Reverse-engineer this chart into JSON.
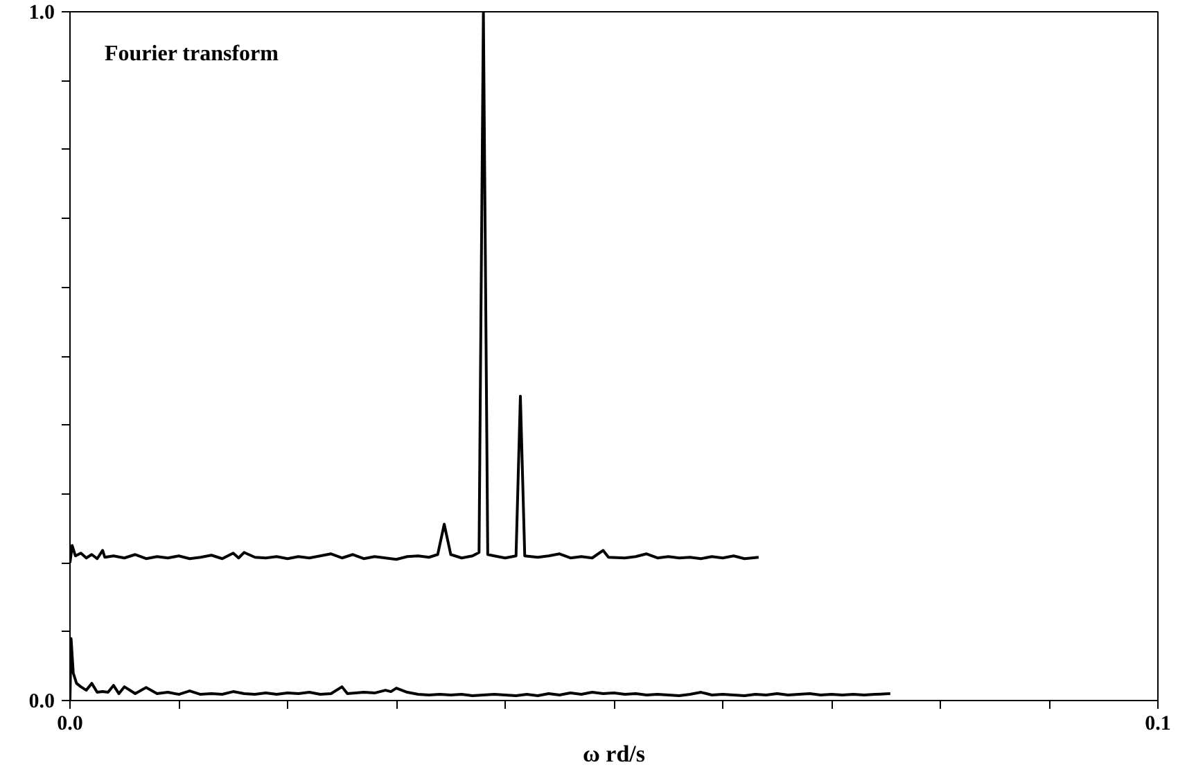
{
  "chart_data": {
    "type": "line",
    "xlabel": "ω rd/s",
    "annotations": [
      "Fourier transform"
    ],
    "xlim": [
      0,
      0.1
    ],
    "ylim": [
      0,
      1.0
    ],
    "xticks": [
      {
        "value": 0,
        "label": "0.0"
      },
      {
        "value": 0.01,
        "label": null
      },
      {
        "value": 0.02,
        "label": null
      },
      {
        "value": 0.03,
        "label": null
      },
      {
        "value": 0.04,
        "label": null
      },
      {
        "value": 0.05,
        "label": null
      },
      {
        "value": 0.06,
        "label": null
      },
      {
        "value": 0.07,
        "label": null
      },
      {
        "value": 0.08,
        "label": null
      },
      {
        "value": 0.09,
        "label": null
      },
      {
        "value": 0.1,
        "label": "0.1"
      }
    ],
    "yticks": [
      {
        "value": 0,
        "label": "0.0"
      },
      {
        "value": 0.1,
        "label": null
      },
      {
        "value": 0.2,
        "label": null
      },
      {
        "value": 0.3,
        "label": null
      },
      {
        "value": 0.4,
        "label": null
      },
      {
        "value": 0.5,
        "label": null
      },
      {
        "value": 0.6,
        "label": null
      },
      {
        "value": 0.7,
        "label": null
      },
      {
        "value": 0.8,
        "label": null
      },
      {
        "value": 0.9,
        "label": null
      },
      {
        "value": 1.0,
        "label": "1.0"
      }
    ],
    "grid": false,
    "series": [
      {
        "color": "#000000",
        "x": [
          0.0,
          0.0002,
          0.0005,
          0.001,
          0.0015,
          0.002,
          0.0025,
          0.003,
          0.0032,
          0.004,
          0.005,
          0.006,
          0.007,
          0.008,
          0.009,
          0.01,
          0.011,
          0.012,
          0.013,
          0.014,
          0.015,
          0.0155,
          0.016,
          0.017,
          0.018,
          0.019,
          0.02,
          0.021,
          0.022,
          0.023,
          0.024,
          0.025,
          0.026,
          0.027,
          0.028,
          0.029,
          0.03,
          0.031,
          0.032,
          0.033,
          0.0338,
          0.0344,
          0.035,
          0.036,
          0.037,
          0.0376,
          0.038,
          0.0384,
          0.039,
          0.04,
          0.041,
          0.0414,
          0.0418,
          0.043,
          0.044,
          0.045,
          0.046,
          0.047,
          0.048,
          0.049,
          0.0495,
          0.051,
          0.052,
          0.053,
          0.054,
          0.055,
          0.056,
          0.057,
          0.058,
          0.059,
          0.06,
          0.061,
          0.062,
          0.0633
        ],
        "values": [
          0.2,
          0.225,
          0.21,
          0.214,
          0.207,
          0.212,
          0.206,
          0.218,
          0.208,
          0.21,
          0.207,
          0.212,
          0.206,
          0.209,
          0.207,
          0.21,
          0.206,
          0.208,
          0.211,
          0.206,
          0.214,
          0.207,
          0.215,
          0.208,
          0.207,
          0.209,
          0.206,
          0.209,
          0.207,
          0.21,
          0.213,
          0.207,
          0.212,
          0.206,
          0.209,
          0.207,
          0.205,
          0.209,
          0.21,
          0.208,
          0.212,
          0.256,
          0.212,
          0.207,
          0.21,
          0.215,
          1.0,
          0.212,
          0.21,
          0.207,
          0.21,
          0.442,
          0.21,
          0.208,
          0.21,
          0.213,
          0.207,
          0.209,
          0.207,
          0.218,
          0.208,
          0.207,
          0.209,
          0.213,
          0.207,
          0.209,
          0.207,
          0.208,
          0.206,
          0.209,
          0.207,
          0.21,
          0.206,
          0.208
        ]
      },
      {
        "color": "#000000",
        "x": [
          0.0,
          0.0001,
          0.0003,
          0.0006,
          0.001,
          0.0015,
          0.002,
          0.0025,
          0.003,
          0.0035,
          0.004,
          0.0045,
          0.005,
          0.006,
          0.007,
          0.008,
          0.009,
          0.01,
          0.011,
          0.012,
          0.013,
          0.014,
          0.015,
          0.016,
          0.017,
          0.018,
          0.019,
          0.02,
          0.021,
          0.022,
          0.023,
          0.024,
          0.025,
          0.0255,
          0.027,
          0.028,
          0.029,
          0.0295,
          0.03,
          0.031,
          0.032,
          0.033,
          0.034,
          0.035,
          0.036,
          0.037,
          0.038,
          0.039,
          0.04,
          0.041,
          0.042,
          0.043,
          0.044,
          0.045,
          0.046,
          0.047,
          0.048,
          0.049,
          0.05,
          0.051,
          0.052,
          0.053,
          0.054,
          0.055,
          0.056,
          0.057,
          0.058,
          0.059,
          0.06,
          0.061,
          0.062,
          0.063,
          0.064,
          0.065,
          0.066,
          0.067,
          0.068,
          0.069,
          0.07,
          0.071,
          0.072,
          0.073,
          0.074,
          0.0754
        ],
        "values": [
          0.0,
          0.09,
          0.04,
          0.025,
          0.02,
          0.015,
          0.025,
          0.012,
          0.013,
          0.012,
          0.022,
          0.01,
          0.02,
          0.01,
          0.019,
          0.01,
          0.012,
          0.009,
          0.014,
          0.009,
          0.01,
          0.009,
          0.013,
          0.01,
          0.009,
          0.011,
          0.009,
          0.011,
          0.01,
          0.012,
          0.009,
          0.01,
          0.02,
          0.01,
          0.012,
          0.011,
          0.015,
          0.013,
          0.018,
          0.012,
          0.009,
          0.008,
          0.009,
          0.008,
          0.009,
          0.007,
          0.008,
          0.009,
          0.008,
          0.007,
          0.009,
          0.007,
          0.01,
          0.008,
          0.011,
          0.009,
          0.012,
          0.01,
          0.011,
          0.009,
          0.01,
          0.008,
          0.009,
          0.008,
          0.007,
          0.009,
          0.012,
          0.008,
          0.009,
          0.008,
          0.007,
          0.009,
          0.008,
          0.01,
          0.008,
          0.009,
          0.01,
          0.008,
          0.009,
          0.008,
          0.009,
          0.008,
          0.009,
          0.01
        ]
      }
    ]
  }
}
